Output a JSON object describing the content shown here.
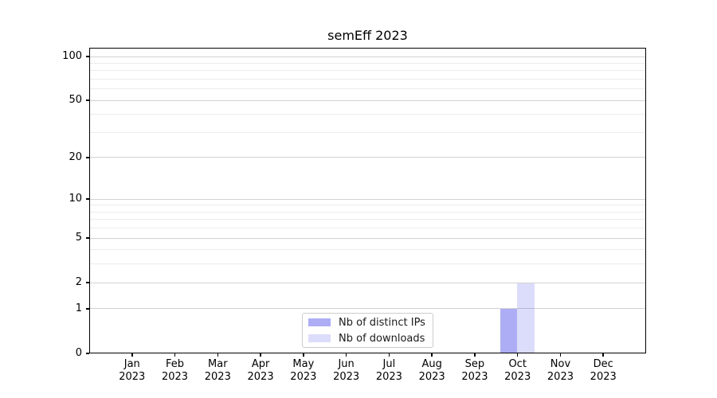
{
  "chart_data": {
    "type": "bar",
    "title": "semEff 2023",
    "categories": [
      "Jan 2023",
      "Feb 2023",
      "Mar 2023",
      "Apr 2023",
      "May 2023",
      "Jun 2023",
      "Jul 2023",
      "Aug 2023",
      "Sep 2023",
      "Oct 2023",
      "Nov 2023",
      "Dec 2023"
    ],
    "series": [
      {
        "name": "Nb of distinct IPs",
        "color": "rgba(40,40,230,0.38)",
        "values": [
          0,
          0,
          0,
          0,
          0,
          0,
          0,
          0,
          0,
          1,
          0,
          0
        ]
      },
      {
        "name": "Nb of downloads",
        "color": "rgba(40,40,230,0.16)",
        "values": [
          0,
          0,
          0,
          0,
          0,
          0,
          0,
          0,
          0,
          2,
          0,
          0
        ]
      }
    ],
    "y_scale": "log1p",
    "y_major_ticks": [
      0,
      1,
      2,
      5,
      10,
      20,
      50,
      100
    ],
    "y_minor_ticks": [
      3,
      4,
      6,
      7,
      8,
      9,
      30,
      40,
      60,
      70,
      80,
      90
    ],
    "ylim": [
      0,
      113
    ],
    "xlabel": "",
    "ylabel": "",
    "grid": "horizontal",
    "legend_position": "lower center"
  },
  "colors": {
    "grid_major": "#d2d2d2",
    "grid_minor": "#ececec",
    "axis": "#000000",
    "bar_distinct_ips_rendered": "#acacf6",
    "bar_downloads_rendered": "#dbdbfa",
    "legend_border": "#cccccc"
  }
}
